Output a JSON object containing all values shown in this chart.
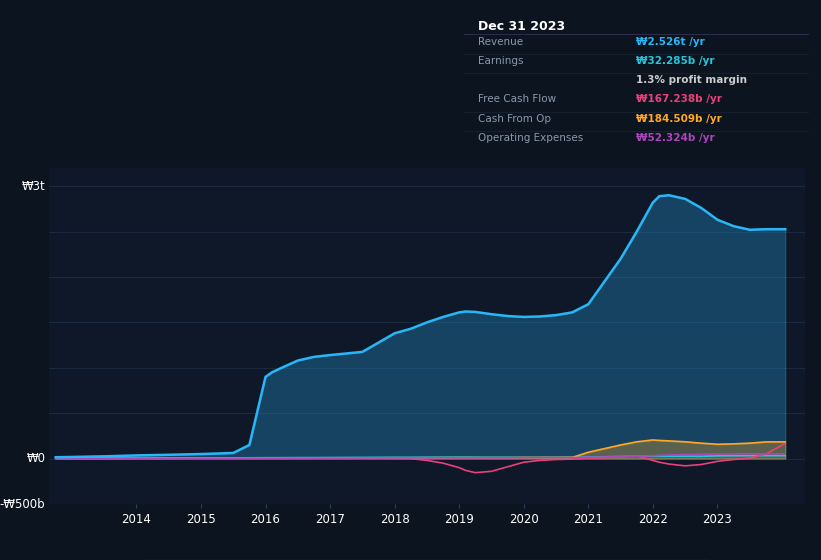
{
  "bg_color": "#0c1420",
  "plot_bg_color": "#0e1828",
  "grid_color": "#1a2d45",
  "years": [
    2012.75,
    2013.0,
    2013.5,
    2014.0,
    2014.5,
    2015.0,
    2015.5,
    2015.75,
    2016.0,
    2016.1,
    2016.25,
    2016.5,
    2016.75,
    2017.0,
    2017.5,
    2018.0,
    2018.25,
    2018.5,
    2018.75,
    2019.0,
    2019.1,
    2019.25,
    2019.5,
    2019.75,
    2020.0,
    2020.25,
    2020.5,
    2020.75,
    2021.0,
    2021.25,
    2021.5,
    2021.75,
    2022.0,
    2022.1,
    2022.25,
    2022.5,
    2022.75,
    2023.0,
    2023.25,
    2023.5,
    2023.75,
    2024.05
  ],
  "revenue": [
    15,
    18,
    25,
    35,
    42,
    50,
    62,
    150,
    900,
    950,
    1000,
    1080,
    1120,
    1140,
    1175,
    1380,
    1430,
    1500,
    1560,
    1610,
    1620,
    1615,
    1590,
    1570,
    1560,
    1565,
    1580,
    1610,
    1700,
    1950,
    2200,
    2500,
    2820,
    2890,
    2900,
    2860,
    2760,
    2630,
    2560,
    2520,
    2526,
    2526
  ],
  "earnings": [
    3,
    3,
    4,
    5,
    6,
    7,
    8,
    9,
    10,
    10,
    10,
    11,
    11,
    12,
    13,
    14,
    14,
    15,
    15,
    16,
    16,
    15,
    14,
    14,
    13,
    13,
    14,
    15,
    17,
    20,
    23,
    26,
    28,
    28,
    27,
    26,
    25,
    30,
    31,
    32,
    32,
    32
  ],
  "free_cash_flow": [
    2,
    2,
    2,
    3,
    3,
    4,
    4,
    5,
    5,
    5,
    5,
    5,
    5,
    5,
    5,
    2,
    0,
    -20,
    -50,
    -100,
    -130,
    -155,
    -140,
    -90,
    -40,
    -20,
    -10,
    -5,
    5,
    10,
    20,
    30,
    -20,
    -40,
    -60,
    -80,
    -65,
    -30,
    -10,
    5,
    50,
    167
  ],
  "cash_from_op": [
    3,
    3,
    3,
    4,
    4,
    5,
    5,
    6,
    6,
    6,
    6,
    7,
    7,
    8,
    8,
    9,
    9,
    9,
    10,
    10,
    10,
    10,
    10,
    10,
    12,
    12,
    12,
    12,
    70,
    110,
    150,
    185,
    205,
    200,
    195,
    185,
    170,
    158,
    162,
    170,
    184,
    184
  ],
  "operating_expenses": [
    2,
    2,
    2,
    3,
    3,
    4,
    4,
    5,
    5,
    5,
    5,
    5,
    5,
    6,
    6,
    7,
    7,
    7,
    8,
    8,
    8,
    8,
    8,
    8,
    10,
    10,
    10,
    10,
    14,
    17,
    21,
    26,
    32,
    36,
    40,
    44,
    48,
    50,
    51,
    52,
    52,
    52
  ],
  "revenue_color": "#29b6f6",
  "earnings_color": "#26c6da",
  "free_cash_flow_color": "#ec407a",
  "cash_from_op_color": "#ffa726",
  "operating_expenses_color": "#ab47bc",
  "ylim_min": -500,
  "ylim_max": 3200,
  "xticks": [
    2014,
    2015,
    2016,
    2017,
    2018,
    2019,
    2020,
    2021,
    2022,
    2023
  ],
  "info_box": {
    "title": "Dec 31 2023",
    "title_color": "#ffffff",
    "bg_color": "#000000",
    "border_color": "#333344",
    "rows": [
      {
        "label": "Revenue",
        "label_color": "#8899aa",
        "value": "₩2.526t /yr",
        "value_color": "#29b6f6"
      },
      {
        "label": "Earnings",
        "label_color": "#8899aa",
        "value": "₩32.285b /yr",
        "value_color": "#26c6da"
      },
      {
        "label": "",
        "label_color": "#8899aa",
        "value": "1.3% profit margin",
        "value_color": "#cccccc"
      },
      {
        "label": "Free Cash Flow",
        "label_color": "#8899aa",
        "value": "₩167.238b /yr",
        "value_color": "#ec407a"
      },
      {
        "label": "Cash From Op",
        "label_color": "#8899aa",
        "value": "₩184.509b /yr",
        "value_color": "#ffa726"
      },
      {
        "label": "Operating Expenses",
        "label_color": "#8899aa",
        "value": "₩52.324b /yr",
        "value_color": "#ab47bc"
      }
    ]
  },
  "legend_items": [
    {
      "label": "Revenue",
      "color": "#29b6f6"
    },
    {
      "label": "Earnings",
      "color": "#26c6da"
    },
    {
      "label": "Free Cash Flow",
      "color": "#ec407a"
    },
    {
      "label": "Cash From Op",
      "color": "#ffa726"
    },
    {
      "label": "Operating Expenses",
      "color": "#ab47bc"
    }
  ]
}
